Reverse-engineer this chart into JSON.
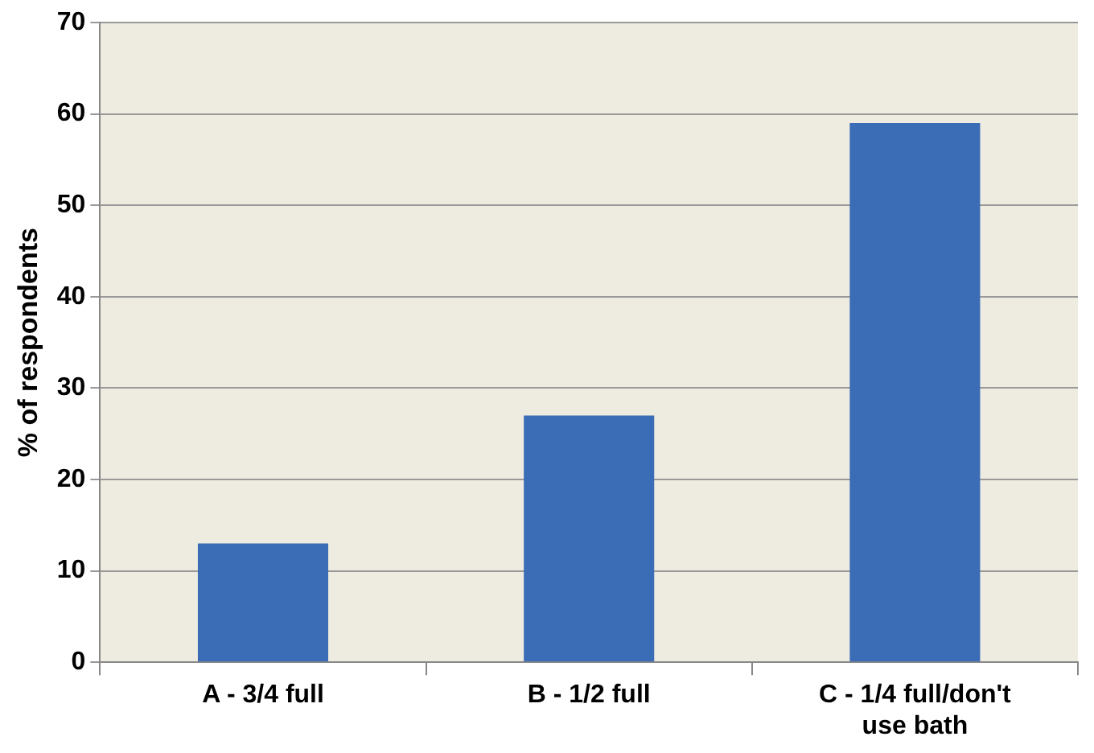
{
  "chart_data": {
    "type": "bar",
    "ylabel": "% of respondents",
    "categories": [
      "A - 3/4 full",
      "B - 1/2 full",
      "C - 1/4 full/don't use bath"
    ],
    "values": [
      13,
      27,
      59
    ],
    "color": "#3a6db5",
    "ylim": [
      0,
      70
    ],
    "yticks": [
      0,
      10,
      20,
      30,
      40,
      50,
      60,
      70
    ],
    "grid": "y"
  }
}
